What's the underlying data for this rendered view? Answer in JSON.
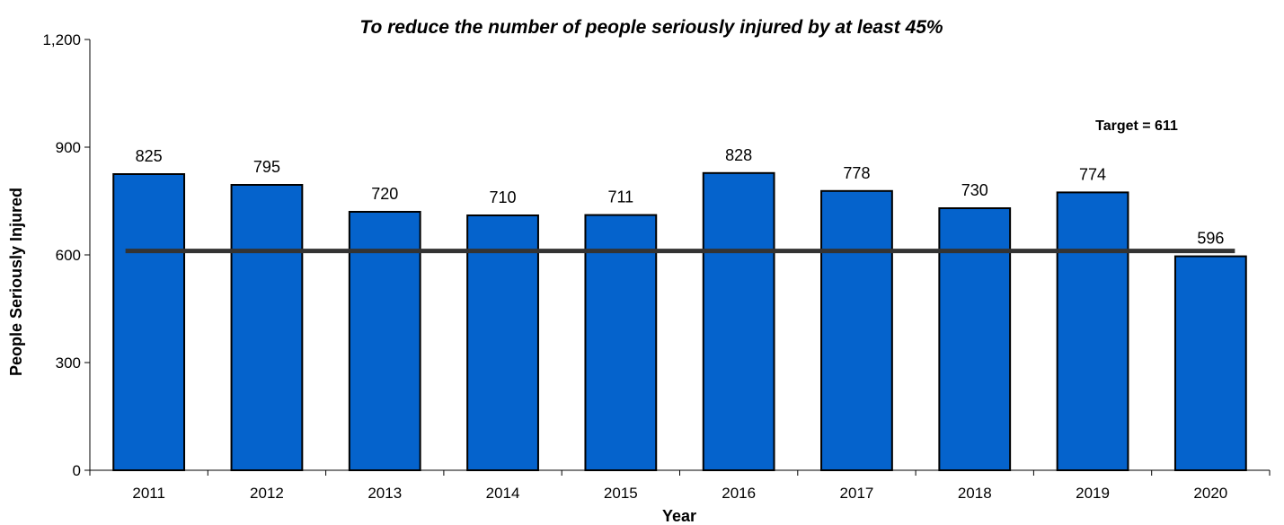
{
  "chart_data": {
    "type": "bar",
    "title": "To reduce the number of people seriously injured by at least 45%",
    "xlabel": "Year",
    "ylabel": "People Seriously Injured",
    "categories": [
      "2011",
      "2012",
      "2013",
      "2014",
      "2015",
      "2016",
      "2017",
      "2018",
      "2019",
      "2020"
    ],
    "values": [
      825,
      795,
      720,
      710,
      711,
      828,
      778,
      730,
      774,
      596
    ],
    "ylim": [
      0,
      1200
    ],
    "yticks": [
      0,
      300,
      600,
      900,
      1200
    ],
    "ytick_labels": [
      "0",
      "300",
      "600",
      "900",
      "1,200"
    ],
    "target": {
      "value": 611,
      "label": "Target = 611"
    },
    "grid": false,
    "legend": "none",
    "colors": {
      "bar": "#0563CC",
      "bar_outline": "#000000",
      "target_line": "#333333"
    }
  }
}
